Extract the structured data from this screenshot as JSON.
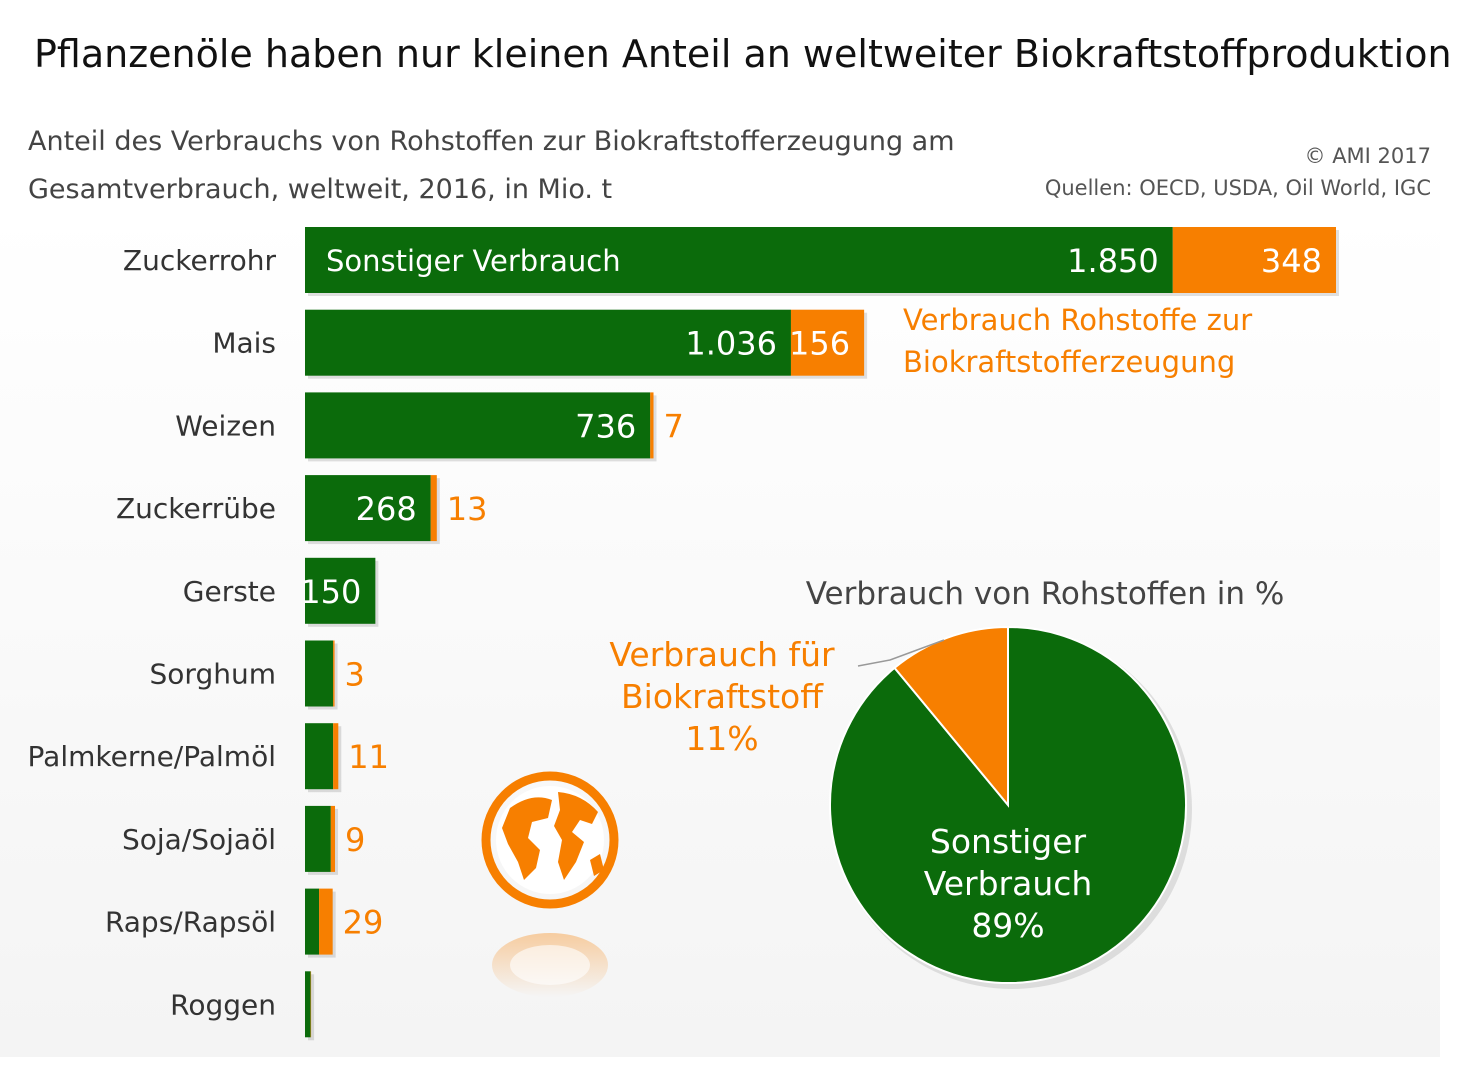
{
  "title": "Pflanzenöle haben nur kleinen Anteil an weltweiter Biokraftstoffproduktion",
  "subtitle_line1": "Anteil des Verbrauchs von Rohstoffen zur Biokraftstofferzeugung am",
  "subtitle_line2": "Gesamtverbrauch, weltweit, 2016, in Mio. t",
  "copyright": "© AMI 2017",
  "sources": "Quellen: OECD, USDA, Oil World, IGC",
  "colors": {
    "green": "#0b6b0b",
    "orange": "#f77f00",
    "label": "#333333"
  },
  "chart_data": [
    {
      "type": "bar",
      "orientation": "horizontal",
      "stacked": true,
      "categories": [
        "Zuckerrohr",
        "Mais",
        "Weizen",
        "Zuckerrübe",
        "Gerste",
        "Sorghum",
        "Palmkerne/Palmöl",
        "Soja/Sojaöl",
        "Raps/Rapsöl",
        "Roggen"
      ],
      "series": [
        {
          "name": "Sonstiger Verbrauch",
          "values": [
            1850,
            1036,
            736,
            268,
            150,
            60,
            60,
            55,
            30,
            12
          ],
          "labels": [
            "1.850",
            "1.036",
            "736",
            "268",
            "150",
            "",
            "",
            "",
            "",
            ""
          ]
        },
        {
          "name": "Verbrauch Rohstoffe zur Biokraftstofferzeugung",
          "values": [
            348,
            156,
            7,
            13,
            0,
            3,
            11,
            9,
            29,
            1
          ],
          "labels": [
            "348",
            "156",
            "7",
            "13",
            "",
            "3",
            "11",
            "9",
            "29",
            ""
          ]
        }
      ],
      "in_bar_label": "Sonstiger Verbrauch",
      "legend_line1": "Verbrauch Rohstoffe zur",
      "legend_line2": "Biokraftstofferzeugung",
      "xlim": [
        0,
        2198
      ]
    },
    {
      "type": "pie",
      "title": "Verbrauch von Rohstoffen in %",
      "slices": [
        {
          "name": "Sonstiger Verbrauch",
          "value": 89,
          "label_lines": [
            "Sonstiger",
            "Verbrauch",
            "89%"
          ]
        },
        {
          "name": "Verbrauch für Biokraftstoff",
          "value": 11,
          "label_lines": [
            "Verbrauch für",
            "Biokraftstoff",
            "11%"
          ]
        }
      ]
    }
  ]
}
